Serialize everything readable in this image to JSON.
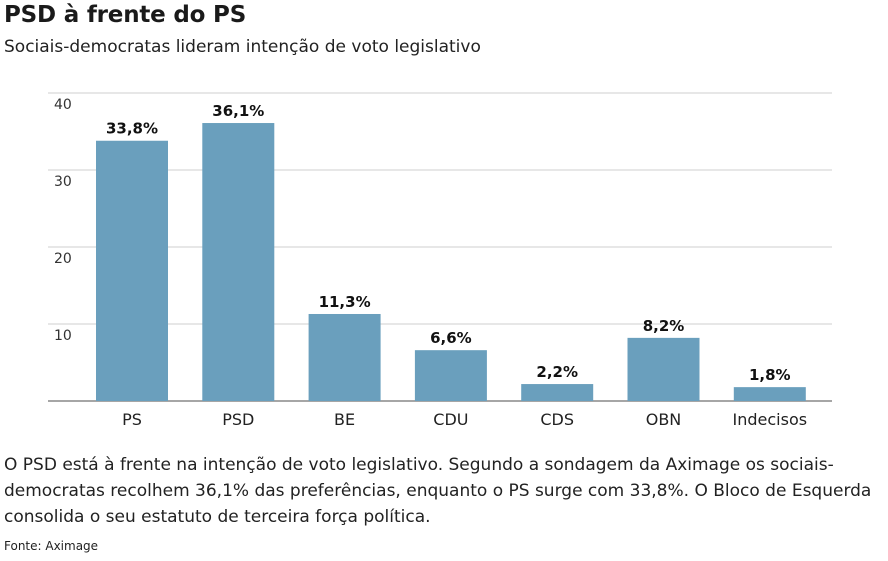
{
  "title": "PSD à frente do PS",
  "subtitle": "Sociais-democratas lideram intenção de voto legislativo",
  "caption": "O PSD está à frente na intenção de voto legislativo. Segundo a sondagem da Aximage os sociais-democratas recolhem 36,1% das preferências, enquanto o PS surge com 33,8%. O Bloco de Esquerda consolida o seu estatuto de terceira força política.",
  "source": "Fonte: Aximage",
  "colors": {
    "bar": "#6a9fbd",
    "grid": "#cfcfcf",
    "axis": "#888888"
  },
  "chart_data": {
    "type": "bar",
    "categories": [
      "PS",
      "PSD",
      "BE",
      "CDU",
      "CDS",
      "OBN",
      "Indecisos"
    ],
    "values": [
      33.8,
      36.1,
      11.3,
      6.6,
      2.2,
      8.2,
      1.8
    ],
    "value_labels": [
      "33,8%",
      "36,1%",
      "11,3%",
      "6,6%",
      "2,2%",
      "8,2%",
      "1,8%"
    ],
    "yticks": [
      "10",
      "20",
      "30",
      "40"
    ],
    "ytick_values": [
      10,
      20,
      30,
      40
    ],
    "ylim": [
      0,
      40
    ],
    "grid": true
  }
}
